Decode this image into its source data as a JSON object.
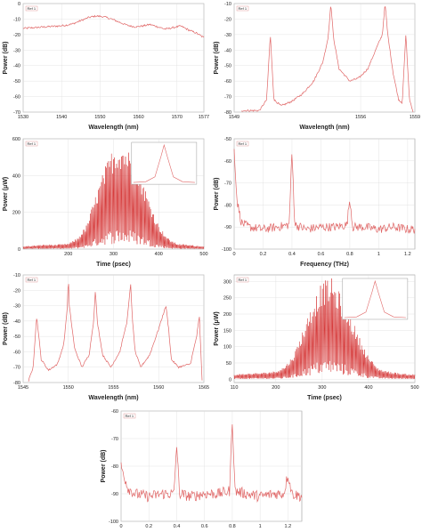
{
  "chart_data": [
    {
      "id": "a",
      "type": "line",
      "xlabel": "Wavelength (nm)",
      "ylabel": "Power (dB)",
      "xlim": [
        1530,
        1577
      ],
      "ylim": [
        -70,
        0
      ],
      "xticks": [
        1530,
        1540,
        1550,
        1560,
        1570,
        1577
      ],
      "yticks": [
        0,
        -10,
        -20,
        -30,
        -40,
        -50,
        -60,
        -70
      ],
      "grid": true,
      "legend": "top-left",
      "series": [
        {
          "color": "#e06666",
          "x": [
            1530,
            1533,
            1536,
            1539,
            1541,
            1543,
            1545,
            1547,
            1549,
            1551,
            1553,
            1555,
            1557,
            1559,
            1561,
            1563,
            1565,
            1567,
            1569,
            1571,
            1573,
            1575,
            1577
          ],
          "y": [
            -16,
            -15.5,
            -15,
            -14.5,
            -14,
            -13,
            -11,
            -9,
            -8,
            -8.5,
            -10,
            -12,
            -14,
            -15,
            -14.5,
            -13.5,
            -15,
            -16.5,
            -15.5,
            -14.5,
            -17,
            -19,
            -22
          ]
        }
      ]
    },
    {
      "id": "b",
      "type": "line",
      "xlabel": "Wavelength (nm)",
      "ylabel": "Power (dB)",
      "xlim": [
        1549,
        1559
      ],
      "ylim": [
        -80,
        -10
      ],
      "xticks": [
        1549,
        1556,
        1559
      ],
      "yticks": [
        -10,
        -20,
        -30,
        -40,
        -50,
        -60,
        -70,
        -80
      ],
      "grid": true,
      "legend": "top-left",
      "series": [
        {
          "color": "#e06666",
          "x": [
            1549.4,
            1550.4,
            1550.8,
            1551.0,
            1551.2,
            1551.6,
            1552.2,
            1552.8,
            1553.4,
            1553.9,
            1554.2,
            1554.35,
            1554.5,
            1554.8,
            1555.4,
            1555.9,
            1556.4,
            1556.9,
            1557.2,
            1557.35,
            1557.5,
            1557.8,
            1558.1,
            1558.3,
            1558.5,
            1558.7,
            1558.9
          ],
          "y": [
            -79,
            -79,
            -72,
            -30,
            -72,
            -76,
            -73,
            -68,
            -60,
            -48,
            -32,
            -10,
            -32,
            -52,
            -60,
            -58,
            -52,
            -38,
            -30,
            -10,
            -30,
            -55,
            -72,
            -74,
            -30,
            -72,
            -80
          ]
        }
      ]
    },
    {
      "id": "c",
      "type": "line",
      "xlabel": "Time (psec)",
      "ylabel": "Power (μW)",
      "xlim": [
        100,
        500
      ],
      "ylim": [
        0,
        600
      ],
      "xticks": [
        200,
        300,
        400,
        500
      ],
      "yticks": [
        0,
        200,
        400,
        600
      ],
      "grid": true,
      "legend": "top-left",
      "series": [
        {
          "color": "#d63a3a",
          "x": [
            100,
            125,
            150,
            175,
            200,
            220,
            240,
            260,
            280,
            300,
            320,
            340,
            360,
            380,
            400,
            420,
            440,
            460,
            480,
            500
          ],
          "y": [
            15,
            20,
            25,
            25,
            30,
            60,
            130,
            290,
            440,
            560,
            580,
            520,
            410,
            260,
            130,
            60,
            30,
            25,
            20,
            15
          ]
        }
      ],
      "inset": {
        "x": [
          0,
          20,
          35,
          45,
          50,
          55,
          65,
          80,
          100
        ],
        "y": [
          0,
          2,
          15,
          70,
          100,
          70,
          15,
          2,
          0
        ]
      }
    },
    {
      "id": "d",
      "type": "line",
      "xlabel": "Frequency (THz)",
      "ylabel": "Power (dB)",
      "xlim": [
        0,
        1.25
      ],
      "ylim": [
        -100,
        -50
      ],
      "xticks": [
        0,
        0.2,
        0.4,
        0.6,
        0.8,
        1.0,
        1.2
      ],
      "yticks": [
        -50,
        -60,
        -70,
        -80,
        -90,
        -100
      ],
      "grid": true,
      "legend": "top-left",
      "series": [
        {
          "color": "#e06666",
          "x": [
            0,
            0.02,
            0.05,
            0.1,
            0.2,
            0.3,
            0.38,
            0.4,
            0.42,
            0.5,
            0.6,
            0.7,
            0.78,
            0.8,
            0.82,
            0.9,
            1.0,
            1.1,
            1.2,
            1.25
          ],
          "y": [
            -55,
            -78,
            -88,
            -90,
            -91,
            -90,
            -89,
            -56,
            -89,
            -91,
            -90,
            -90,
            -89,
            -77,
            -90,
            -90,
            -91,
            -90,
            -91,
            -91
          ]
        }
      ]
    },
    {
      "id": "e",
      "type": "line",
      "xlabel": "Wavelength (nm)",
      "ylabel": "Power (dB)",
      "xlim": [
        1545,
        1565
      ],
      "ylim": [
        -80,
        -10
      ],
      "xticks": [
        1545,
        1550,
        1555,
        1560,
        1565
      ],
      "yticks": [
        -10,
        -20,
        -30,
        -40,
        -50,
        -60,
        -70,
        -80
      ],
      "grid": true,
      "legend": "top-left",
      "series": [
        {
          "color": "#e06666",
          "x": [
            1545.6,
            1546.1,
            1546.5,
            1547.0,
            1547.8,
            1548.8,
            1549.5,
            1549.9,
            1550.0,
            1550.1,
            1550.7,
            1551.5,
            1552.3,
            1552.8,
            1553.0,
            1553.2,
            1553.8,
            1554.7,
            1555.7,
            1556.5,
            1556.9,
            1557.1,
            1557.4,
            1558.0,
            1559.0,
            1560.0,
            1560.8,
            1561.1,
            1561.4,
            1562.2,
            1563.5,
            1564.2,
            1564.5,
            1564.8
          ],
          "y": [
            -79,
            -70,
            -37,
            -65,
            -72,
            -68,
            -55,
            -30,
            -10,
            -30,
            -58,
            -70,
            -62,
            -40,
            -20,
            -40,
            -62,
            -70,
            -60,
            -40,
            -16,
            -40,
            -60,
            -70,
            -62,
            -45,
            -30,
            -45,
            -65,
            -70,
            -68,
            -50,
            -37,
            -79
          ]
        }
      ]
    },
    {
      "id": "f",
      "type": "line",
      "xlabel": "Time (psec)",
      "ylabel": "Power (μW)",
      "xlim": [
        110,
        500
      ],
      "ylim": [
        -10,
        320
      ],
      "xticks": [
        110,
        200,
        300,
        400,
        500
      ],
      "yticks": [
        0,
        50,
        100,
        150,
        200,
        250,
        300
      ],
      "grid": true,
      "legend": "top-left",
      "series": [
        {
          "color": "#d63a3a",
          "x": [
            110,
            140,
            170,
            200,
            220,
            240,
            260,
            280,
            300,
            320,
            340,
            360,
            380,
            400,
            420,
            440,
            470,
            500
          ],
          "y": [
            15,
            18,
            20,
            25,
            40,
            80,
            160,
            240,
            300,
            310,
            260,
            200,
            130,
            70,
            35,
            25,
            18,
            15
          ]
        }
      ],
      "inset": {
        "x": [
          0,
          20,
          35,
          45,
          50,
          55,
          65,
          80,
          100
        ],
        "y": [
          0,
          2,
          15,
          70,
          100,
          70,
          15,
          2,
          0
        ]
      }
    },
    {
      "id": "g",
      "type": "line",
      "xlabel": "",
      "ylabel": "Power (dB)",
      "xlim": [
        0,
        1.3
      ],
      "ylim": [
        -100,
        -60
      ],
      "xticks": [
        0,
        0.2,
        0.4,
        0.6,
        0.8,
        1.0,
        1.2
      ],
      "yticks": [
        -60,
        -70,
        -80,
        -90,
        -100
      ],
      "grid": true,
      "legend": "top-left",
      "series": [
        {
          "color": "#e06666",
          "x": [
            0,
            0.05,
            0.1,
            0.2,
            0.3,
            0.38,
            0.4,
            0.42,
            0.5,
            0.6,
            0.7,
            0.78,
            0.8,
            0.82,
            0.9,
            1.0,
            1.1,
            1.17,
            1.2,
            1.23,
            1.3
          ],
          "y": [
            -80,
            -88,
            -90,
            -91,
            -90,
            -90,
            -72,
            -90,
            -91,
            -90,
            -90,
            -89,
            -63,
            -89,
            -90,
            -91,
            -90,
            -90,
            -83,
            -90,
            -91
          ]
        }
      ]
    }
  ],
  "legend_label": "Ref 1"
}
